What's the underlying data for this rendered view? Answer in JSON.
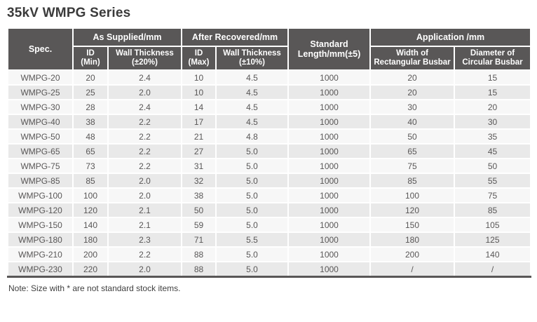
{
  "page": {
    "title": "35kV WMPG Series",
    "note": "Note: Size with * are not standard stock items."
  },
  "colors": {
    "header_bg": "#595757",
    "header_text": "#ffffff",
    "row_light": "#f7f7f7",
    "row_dark": "#e9e9e9",
    "cell_text": "#595757",
    "bottom_rule": "#595757"
  },
  "table": {
    "header": {
      "spec": "Spec.",
      "as_supplied_group": "As Supplied/mm",
      "after_recovered_group": "After Recovered/mm",
      "standard_length_line1": "Standard",
      "standard_length_line2": "Length/mm(±5)",
      "application_group": "Application /mm",
      "id_min_line1": "ID",
      "id_min_line2": "(Min)",
      "wall_thickness_20_line1": "Wall Thickness",
      "wall_thickness_20_line2": "(±20%)",
      "id_max_line1": "ID",
      "id_max_line2": "(Max)",
      "wall_thickness_10_line1": "Wall Thickness",
      "wall_thickness_10_line2": "(±10%)",
      "width_rect_line1": "Width of",
      "width_rect_line2": "Rectangular Busbar",
      "diameter_circ_line1": "Diameter of",
      "diameter_circ_line2": "Circular Busbar"
    },
    "columns": [
      "spec",
      "id_min",
      "wall_thickness_20pct",
      "id_max",
      "wall_thickness_10pct",
      "standard_length",
      "width_rectangular_busbar",
      "diameter_circular_busbar"
    ],
    "rows": [
      [
        "WMPG-20",
        "20",
        "2.4",
        "10",
        "4.5",
        "1000",
        "20",
        "15"
      ],
      [
        "WMPG-25",
        "25",
        "2.0",
        "10",
        "4.5",
        "1000",
        "20",
        "15"
      ],
      [
        "WMPG-30",
        "28",
        "2.4",
        "14",
        "4.5",
        "1000",
        "30",
        "20"
      ],
      [
        "WMPG-40",
        "38",
        "2.2",
        "17",
        "4.5",
        "1000",
        "40",
        "30"
      ],
      [
        "WMPG-50",
        "48",
        "2.2",
        "21",
        "4.8",
        "1000",
        "50",
        "35"
      ],
      [
        "WMPG-65",
        "65",
        "2.2",
        "27",
        "5.0",
        "1000",
        "65",
        "45"
      ],
      [
        "WMPG-75",
        "73",
        "2.2",
        "31",
        "5.0",
        "1000",
        "75",
        "50"
      ],
      [
        "WMPG-85",
        "85",
        "2.0",
        "32",
        "5.0",
        "1000",
        "85",
        "55"
      ],
      [
        "WMPG-100",
        "100",
        "2.0",
        "38",
        "5.0",
        "1000",
        "100",
        "75"
      ],
      [
        "WMPG-120",
        "120",
        "2.1",
        "50",
        "5.0",
        "1000",
        "120",
        "85"
      ],
      [
        "WMPG-150",
        "140",
        "2.1",
        "59",
        "5.0",
        "1000",
        "150",
        "105"
      ],
      [
        "WMPG-180",
        "180",
        "2.3",
        "71",
        "5.5",
        "1000",
        "180",
        "125"
      ],
      [
        "WMPG-210",
        "200",
        "2.2",
        "88",
        "5.0",
        "1000",
        "200",
        "140"
      ],
      [
        "WMPG-230",
        "220",
        "2.0",
        "88",
        "5.0",
        "1000",
        "/",
        "/"
      ]
    ]
  }
}
